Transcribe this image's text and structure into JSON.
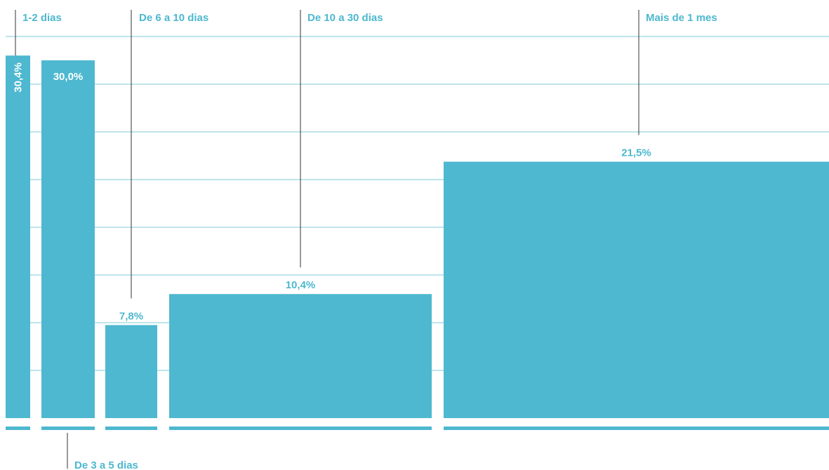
{
  "colors": {
    "bar": "#4db8cf",
    "label": "#4db8cf",
    "value_label_inside": "#ffffff",
    "value_label_outside": "#4db8cf",
    "grid": "#7fc8d8",
    "leader": "#333333"
  },
  "chart_data": {
    "type": "bar",
    "title": "",
    "xlabel": "",
    "ylabel": "",
    "ylim": [
      0,
      37.5
    ],
    "grid": true,
    "categories": [
      "1-2 dias",
      "De 3 a 5 dias",
      "De 6 a 10 dias",
      "De 10 a 30 dias",
      "Mais de 1 mes"
    ],
    "values": [
      30.4,
      30.0,
      7.8,
      10.4,
      21.5
    ],
    "value_labels": [
      "30,4%",
      "30,0%",
      "7,8%",
      "10,4%",
      "21,5%"
    ],
    "label_position": [
      "top",
      "bottom",
      "top",
      "top",
      "top"
    ]
  }
}
